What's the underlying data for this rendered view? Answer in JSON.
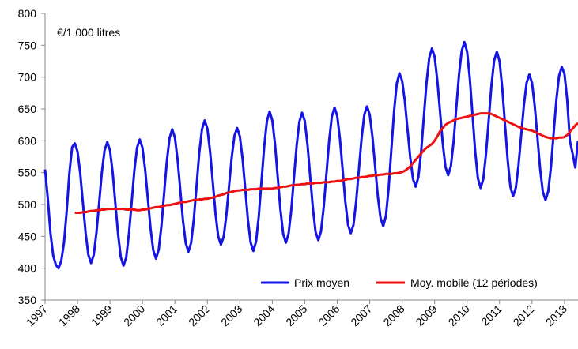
{
  "chart_data": {
    "type": "line",
    "annotation": "€/1.000 litres",
    "categories": [
      "1997",
      null,
      null,
      null,
      null,
      null,
      null,
      null,
      null,
      null,
      null,
      null,
      "1998",
      null,
      null,
      null,
      null,
      null,
      null,
      null,
      null,
      null,
      null,
      null,
      "1999",
      null,
      null,
      null,
      null,
      null,
      null,
      null,
      null,
      null,
      null,
      null,
      "2000",
      null,
      null,
      null,
      null,
      null,
      null,
      null,
      null,
      null,
      null,
      null,
      "2001",
      null,
      null,
      null,
      null,
      null,
      null,
      null,
      null,
      null,
      null,
      null,
      "2002",
      null,
      null,
      null,
      null,
      null,
      null,
      null,
      null,
      null,
      null,
      null,
      "2003",
      null,
      null,
      null,
      null,
      null,
      null,
      null,
      null,
      null,
      null,
      null,
      "2004",
      null,
      null,
      null,
      null,
      null,
      null,
      null,
      null,
      null,
      null,
      null,
      "2005",
      null,
      null,
      null,
      null,
      null,
      null,
      null,
      null,
      null,
      null,
      null,
      "2006",
      null,
      null,
      null,
      null,
      null,
      null,
      null,
      null,
      null,
      null,
      null,
      "2007",
      null,
      null,
      null,
      null,
      null,
      null,
      null,
      null,
      null,
      null,
      null,
      "2008",
      null,
      null,
      null,
      null,
      null,
      null,
      null,
      null,
      null,
      null,
      null,
      "2009",
      null,
      null,
      null,
      null,
      null,
      null,
      null,
      null,
      null,
      null,
      null,
      "2010",
      null,
      null,
      null,
      null,
      null,
      null,
      null,
      null,
      null,
      null,
      null,
      "2011",
      null,
      null,
      null,
      null,
      null,
      null,
      null,
      null,
      null,
      null,
      null,
      "2012",
      null,
      null,
      null,
      null,
      null,
      null,
      null,
      null,
      null,
      null,
      null,
      "2013",
      null,
      null,
      null,
      null,
      null
    ],
    "series": [
      {
        "name": "Prix moyen",
        "color": "#1414e6",
        "values": [
          555,
          510,
          455,
          420,
          405,
          400,
          412,
          440,
          490,
          550,
          590,
          596,
          583,
          549,
          502,
          455,
          421,
          408,
          421,
          456,
          503,
          551,
          585,
          598,
          585,
          550,
          501,
          453,
          417,
          404,
          417,
          454,
          503,
          553,
          589,
          602,
          589,
          555,
          509,
          462,
          428,
          415,
          429,
          466,
          517,
          567,
          604,
          618,
          605,
          570,
          522,
          474,
          439,
          426,
          440,
          478,
          529,
          581,
          618,
          632,
          619,
          583,
          535,
          486,
          450,
          437,
          449,
          483,
          529,
          574,
          608,
          620,
          607,
          572,
          524,
          475,
          440,
          427,
          442,
          482,
          537,
          591,
          631,
          646,
          632,
          595,
          543,
          492,
          454,
          440,
          454,
          491,
          542,
          593,
          630,
          644,
          631,
          594,
          544,
          494,
          457,
          444,
          458,
          496,
          548,
          600,
          638,
          652,
          639,
          603,
          554,
          504,
          468,
          455,
          468,
          505,
          555,
          604,
          641,
          654,
          641,
          607,
          560,
          513,
          479,
          466,
          482,
          526,
          586,
          646,
          690,
          706,
          694,
          662,
          617,
          573,
          540,
          528,
          543,
          582,
          637,
          691,
          730,
          745,
          732,
          695,
          646,
          596,
          559,
          546,
          560,
          598,
          651,
          703,
          741,
          755,
          740,
          698,
          641,
          583,
          541,
          526,
          540,
          580,
          633,
          687,
          726,
          740,
          725,
          683,
          627,
          570,
          528,
          513,
          526,
          561,
          609,
          656,
          691,
          704,
          691,
          655,
          606,
          556,
          520,
          507,
          521,
          559,
          612,
          664,
          702,
          716,
          705,
          665,
          600,
          580,
          558,
          600
        ]
      },
      {
        "name": "Moy. mobile (12 périodes)",
        "color": "#ee1111",
        "values": [
          null,
          null,
          null,
          null,
          null,
          null,
          null,
          null,
          null,
          null,
          null,
          487,
          487,
          487,
          488,
          488,
          489,
          490,
          490,
          491,
          491,
          492,
          492,
          493,
          493,
          493,
          493,
          493,
          493,
          493,
          492,
          492,
          492,
          492,
          491,
          491,
          492,
          492,
          493,
          494,
          495,
          496,
          496,
          497,
          498,
          499,
          499,
          500,
          501,
          502,
          503,
          504,
          504,
          505,
          506,
          507,
          507,
          508,
          508,
          509,
          509,
          510,
          511,
          512,
          514,
          515,
          516,
          518,
          519,
          520,
          521,
          522,
          522,
          523,
          523,
          523,
          524,
          524,
          524,
          525,
          525,
          525,
          525,
          525,
          525,
          526,
          526,
          527,
          528,
          528,
          529,
          530,
          530,
          531,
          531,
          532,
          532,
          533,
          533,
          533,
          534,
          534,
          534,
          535,
          535,
          535,
          536,
          536,
          537,
          537,
          538,
          539,
          540,
          540,
          541,
          542,
          542,
          543,
          543,
          544,
          545,
          545,
          546,
          546,
          547,
          547,
          548,
          548,
          548,
          549,
          549,
          550,
          551,
          553,
          556,
          560,
          565,
          570,
          575,
          580,
          585,
          589,
          592,
          595,
          600,
          607,
          615,
          620,
          625,
          628,
          630,
          632,
          634,
          635,
          636,
          637,
          638,
          639,
          640,
          641,
          642,
          643,
          643,
          643,
          643,
          642,
          640,
          638,
          636,
          634,
          632,
          630,
          628,
          626,
          624,
          622,
          620,
          619,
          618,
          617,
          616,
          614,
          612,
          610,
          608,
          606,
          605,
          604,
          604,
          604,
          605,
          605,
          606,
          609,
          614,
          619,
          624,
          628
        ]
      }
    ],
    "ylim": [
      350,
      800
    ],
    "yticks": [
      350,
      400,
      450,
      500,
      550,
      600,
      650,
      700,
      750,
      800
    ],
    "grid": false,
    "legend": "lower right"
  }
}
